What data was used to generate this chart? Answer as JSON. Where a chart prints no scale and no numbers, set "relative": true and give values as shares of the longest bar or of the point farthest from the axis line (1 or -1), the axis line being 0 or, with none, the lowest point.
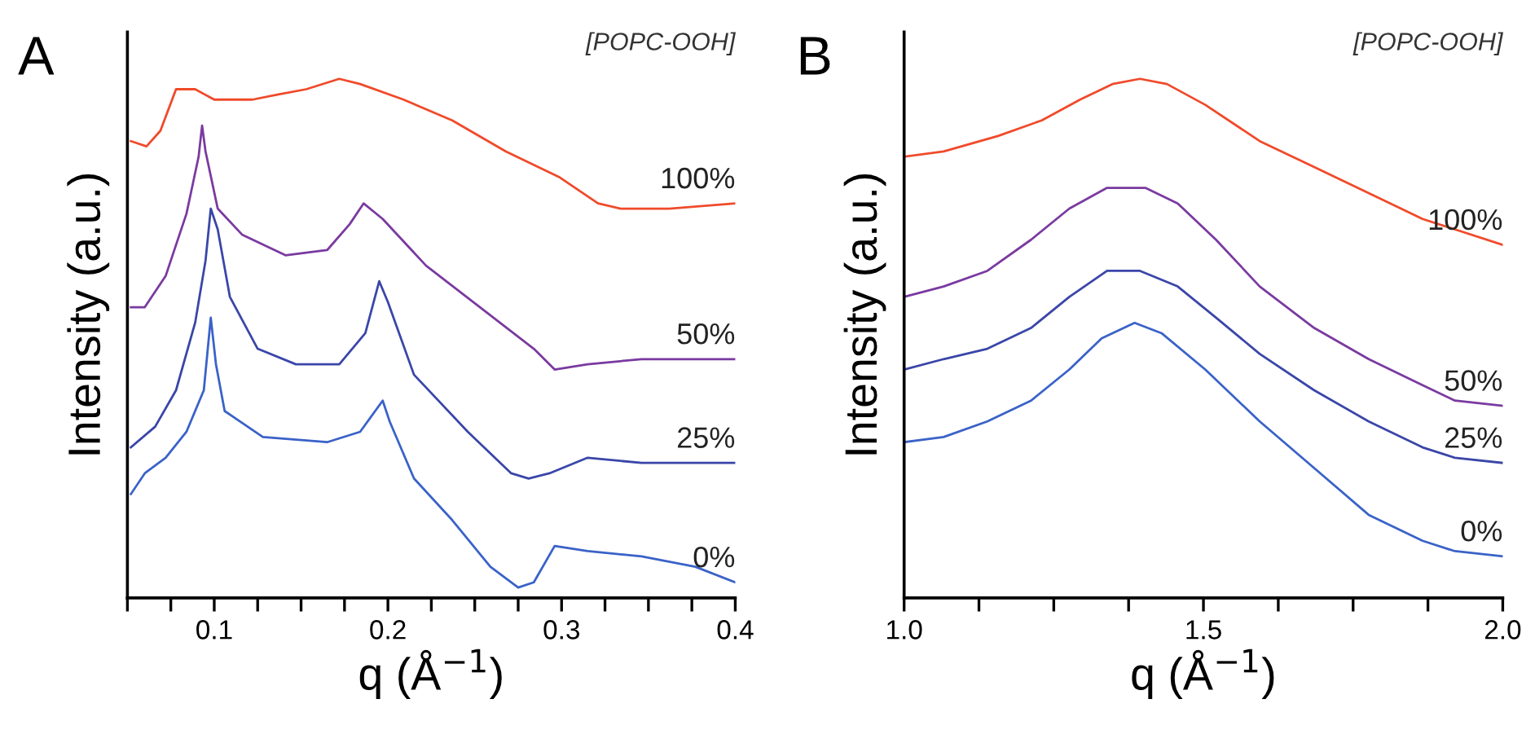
{
  "chart_data": [
    {
      "type": "line",
      "title": "A",
      "xlabel": "q (Å$^{−1}$)",
      "ylabel": "Intensity (a.u.)",
      "legend_title": "[POPC-OOH]",
      "relative": true,
      "tick_labels": "x",
      "legend": false,
      "grid": false,
      "xlim": [
        0.05,
        0.4
      ],
      "xticks": [
        {
          "value": 0.05,
          "label": null
        },
        {
          "value": 0.075,
          "label": null
        },
        0.1,
        {
          "value": 0.125,
          "label": null
        },
        {
          "value": 0.15,
          "label": null
        },
        {
          "value": 0.175,
          "label": null
        },
        0.2,
        {
          "value": 0.225,
          "label": null
        },
        {
          "value": 0.25,
          "label": null
        },
        {
          "value": 0.275,
          "label": null
        },
        0.3,
        {
          "value": 0.325,
          "label": null
        },
        {
          "value": 0.35,
          "label": null
        },
        {
          "value": 0.375,
          "label": null
        },
        0.4
      ],
      "series": [
        {
          "name": "100%",
          "color": "#f04a2a",
          "x": [
            0.052,
            0.061,
            0.069,
            0.078,
            0.089,
            0.1,
            0.122,
            0.137,
            0.153,
            0.172,
            0.184,
            0.209,
            0.237,
            0.268,
            0.299,
            0.321,
            0.334,
            0.362,
            0.4
          ],
          "values": [
            0.88,
            0.87,
            0.9,
            0.98,
            0.98,
            0.96,
            0.96,
            0.97,
            0.98,
            1.0,
            0.99,
            0.96,
            0.92,
            0.86,
            0.81,
            0.76,
            0.75,
            0.75,
            0.76
          ]
        },
        {
          "name": "50%",
          "color": "#7a3aa0",
          "x": [
            0.052,
            0.06,
            0.072,
            0.084,
            0.091,
            0.093,
            0.095,
            0.102,
            0.116,
            0.141,
            0.165,
            0.178,
            0.186,
            0.197,
            0.222,
            0.253,
            0.284,
            0.296,
            0.315,
            0.346,
            0.4
          ],
          "values": [
            0.56,
            0.56,
            0.62,
            0.74,
            0.85,
            0.91,
            0.86,
            0.75,
            0.7,
            0.66,
            0.67,
            0.72,
            0.76,
            0.73,
            0.64,
            0.56,
            0.48,
            0.44,
            0.45,
            0.46,
            0.46
          ]
        },
        {
          "name": "25%",
          "color": "#3a46a8",
          "x": [
            0.052,
            0.066,
            0.078,
            0.089,
            0.095,
            0.098,
            0.102,
            0.109,
            0.125,
            0.147,
            0.172,
            0.187,
            0.195,
            0.2,
            0.215,
            0.246,
            0.271,
            0.281,
            0.293,
            0.315,
            0.346,
            0.4
          ],
          "values": [
            0.29,
            0.33,
            0.4,
            0.53,
            0.65,
            0.75,
            0.71,
            0.58,
            0.48,
            0.45,
            0.45,
            0.51,
            0.61,
            0.57,
            0.43,
            0.32,
            0.24,
            0.23,
            0.24,
            0.27,
            0.26,
            0.26
          ]
        },
        {
          "name": "0%",
          "color": "#3a62c8",
          "x": [
            0.052,
            0.06,
            0.072,
            0.084,
            0.094,
            0.098,
            0.101,
            0.106,
            0.128,
            0.165,
            0.184,
            0.197,
            0.201,
            0.215,
            0.237,
            0.259,
            0.275,
            0.284,
            0.296,
            0.315,
            0.346,
            0.377,
            0.4
          ],
          "values": [
            0.2,
            0.24,
            0.27,
            0.32,
            0.4,
            0.54,
            0.45,
            0.36,
            0.31,
            0.3,
            0.32,
            0.38,
            0.34,
            0.23,
            0.15,
            0.06,
            0.02,
            0.03,
            0.1,
            0.09,
            0.08,
            0.06,
            0.03
          ]
        }
      ]
    },
    {
      "type": "line",
      "title": "B",
      "xlabel": "q (Å$^{−1}$)",
      "ylabel": "Intensity (a.u.)",
      "legend_title": "[POPC-OOH]",
      "relative": true,
      "tick_labels": "x",
      "legend": false,
      "grid": false,
      "xlim": [
        1.0,
        2.0
      ],
      "xticks": [
        {
          "value": 1.0,
          "label": "1.0"
        },
        {
          "value": 1.125,
          "label": null
        },
        {
          "value": 1.25,
          "label": null
        },
        {
          "value": 1.375,
          "label": null
        },
        1.5,
        {
          "value": 1.625,
          "label": null
        },
        {
          "value": 1.75,
          "label": null
        },
        {
          "value": 1.875,
          "label": null
        },
        {
          "value": 2.0,
          "label": "2.0"
        }
      ],
      "series": [
        {
          "name": "100%",
          "color": "#f04a2a",
          "x": [
            1.0,
            1.066,
            1.157,
            1.23,
            1.294,
            1.348,
            1.394,
            1.439,
            1.503,
            1.594,
            1.685,
            1.776,
            1.866,
            1.92,
            2.0
          ],
          "values": [
            0.85,
            0.86,
            0.89,
            0.92,
            0.96,
            0.99,
            1.0,
            0.99,
            0.95,
            0.88,
            0.83,
            0.78,
            0.73,
            0.71,
            0.68
          ]
        },
        {
          "name": "50%",
          "color": "#7a3aa0",
          "x": [
            1.0,
            1.066,
            1.139,
            1.212,
            1.276,
            1.339,
            1.403,
            1.457,
            1.521,
            1.594,
            1.685,
            1.776,
            1.866,
            1.92,
            2.0
          ],
          "values": [
            0.58,
            0.6,
            0.63,
            0.69,
            0.75,
            0.79,
            0.79,
            0.76,
            0.69,
            0.6,
            0.52,
            0.46,
            0.41,
            0.38,
            0.37
          ]
        },
        {
          "name": "25%",
          "color": "#3a46a8",
          "x": [
            1.0,
            1.066,
            1.139,
            1.212,
            1.276,
            1.339,
            1.394,
            1.457,
            1.521,
            1.594,
            1.685,
            1.776,
            1.866,
            1.92,
            2.0
          ],
          "values": [
            0.44,
            0.46,
            0.48,
            0.52,
            0.58,
            0.63,
            0.63,
            0.6,
            0.54,
            0.47,
            0.4,
            0.34,
            0.29,
            0.27,
            0.26
          ]
        },
        {
          "name": "0%",
          "color": "#3a62c8",
          "x": [
            1.0,
            1.066,
            1.139,
            1.212,
            1.276,
            1.33,
            1.385,
            1.43,
            1.503,
            1.594,
            1.685,
            1.776,
            1.866,
            1.92,
            2.0
          ],
          "values": [
            0.3,
            0.31,
            0.34,
            0.38,
            0.44,
            0.5,
            0.53,
            0.51,
            0.44,
            0.34,
            0.25,
            0.16,
            0.11,
            0.09,
            0.08
          ]
        }
      ]
    }
  ]
}
